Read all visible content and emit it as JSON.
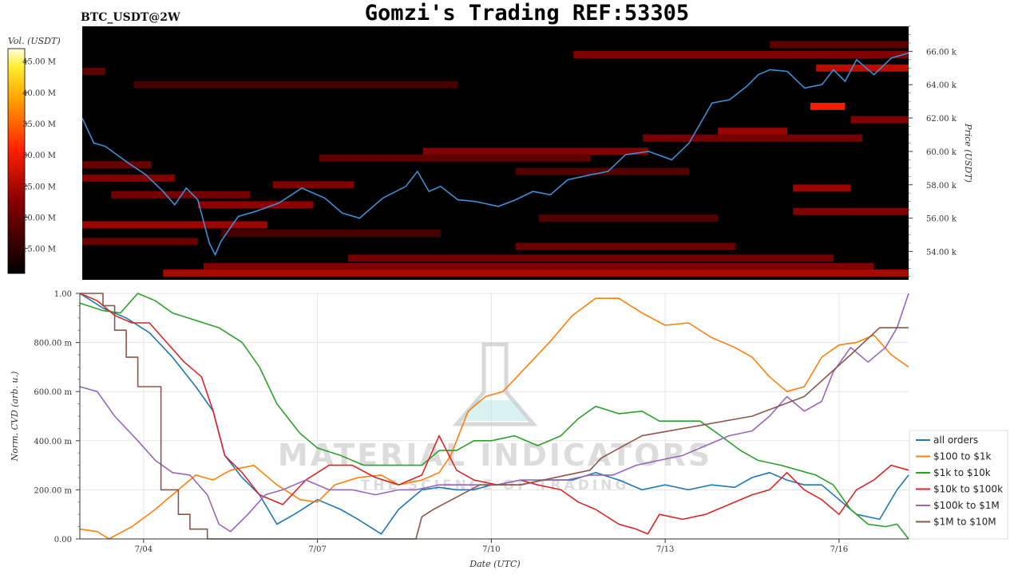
{
  "header": {
    "pair_label": "BTC_USDT@2W",
    "title": "Gomzi's Trading REF:53305"
  },
  "watermark": {
    "brand": "MATERIAL INDICATORS",
    "tagline": "THE SCIENCE OF TRADING"
  },
  "colors": {
    "background": "#000000",
    "price_line": "#3d8fd6",
    "grid": "#e6e6e6"
  },
  "chart_data": [
    {
      "type": "heatmap",
      "colorbar": {
        "label": "Vol. (USDT)",
        "ticks": [
          "45.00 M",
          "40.00 M",
          "35.00 M",
          "30.00 M",
          "25.00 M",
          "20.00 M",
          "15.00 M"
        ],
        "tick_values": [
          45,
          40,
          35,
          30,
          25,
          20,
          15
        ],
        "range": [
          11,
          47
        ],
        "colormap": "hot"
      },
      "ylabel": "Price (USDT)",
      "yticks": [
        "54.00 k",
        "56.00 k",
        "58.00 k",
        "60.00 k",
        "62.00 k",
        "64.00 k",
        "66.00 k"
      ],
      "ytick_values": [
        54000,
        56000,
        58000,
        60000,
        62000,
        64000,
        66000
      ],
      "ylim": [
        52300,
        67500
      ],
      "xlim": [
        0,
        14.3
      ],
      "bands": [
        {
          "price": 66400,
          "x0": 11.9,
          "x1": 14.3,
          "v": 19
        },
        {
          "price": 65800,
          "x0": 8.5,
          "x1": 14.3,
          "v": 22
        },
        {
          "price": 65000,
          "x0": 12.7,
          "x1": 14.3,
          "v": 26
        },
        {
          "price": 64800,
          "x0": 0,
          "x1": 0.4,
          "v": 19
        },
        {
          "price": 64000,
          "x0": 0.9,
          "x1": 6.5,
          "v": 17
        },
        {
          "price": 62700,
          "x0": 12.6,
          "x1": 13.2,
          "v": 30
        },
        {
          "price": 61900,
          "x0": 13.3,
          "x1": 14.3,
          "v": 22
        },
        {
          "price": 61200,
          "x0": 11.0,
          "x1": 12.2,
          "v": 24
        },
        {
          "price": 60800,
          "x0": 9.7,
          "x1": 13.5,
          "v": 21
        },
        {
          "price": 60000,
          "x0": 5.9,
          "x1": 9.8,
          "v": 22
        },
        {
          "price": 59600,
          "x0": 4.1,
          "x1": 8.8,
          "v": 19
        },
        {
          "price": 59200,
          "x0": 0,
          "x1": 1.2,
          "v": 20
        },
        {
          "price": 58800,
          "x0": 7.5,
          "x1": 10.5,
          "v": 18
        },
        {
          "price": 58400,
          "x0": 0,
          "x1": 1.6,
          "v": 22
        },
        {
          "price": 58000,
          "x0": 3.3,
          "x1": 4.7,
          "v": 22
        },
        {
          "price": 57800,
          "x0": 12.3,
          "x1": 13.3,
          "v": 24
        },
        {
          "price": 57400,
          "x0": 0.5,
          "x1": 2.9,
          "v": 21
        },
        {
          "price": 56800,
          "x0": 2.0,
          "x1": 4.0,
          "v": 23
        },
        {
          "price": 56400,
          "x0": 12.3,
          "x1": 14.3,
          "v": 22
        },
        {
          "price": 56000,
          "x0": 7.9,
          "x1": 11.0,
          "v": 18
        },
        {
          "price": 55600,
          "x0": 0,
          "x1": 3.2,
          "v": 24
        },
        {
          "price": 55100,
          "x0": 2.4,
          "x1": 6.2,
          "v": 17
        },
        {
          "price": 54600,
          "x0": 0,
          "x1": 2.0,
          "v": 20
        },
        {
          "price": 54300,
          "x0": 7.5,
          "x1": 11.3,
          "v": 20
        },
        {
          "price": 53600,
          "x0": 4.6,
          "x1": 13.0,
          "v": 21
        },
        {
          "price": 53100,
          "x0": 2.1,
          "x1": 13.7,
          "v": 22
        },
        {
          "price": 52700,
          "x0": 1.4,
          "x1": 14.3,
          "v": 25
        }
      ],
      "price_line": {
        "x": [
          0,
          0.2,
          0.4,
          0.8,
          1.1,
          1.4,
          1.6,
          1.8,
          2.0,
          2.2,
          2.3,
          2.4,
          2.7,
          3.0,
          3.4,
          3.8,
          4.2,
          4.5,
          4.8,
          5.2,
          5.6,
          5.8,
          6.0,
          6.2,
          6.5,
          6.8,
          7.2,
          7.5,
          7.8,
          8.1,
          8.4,
          8.8,
          9.1,
          9.4,
          9.8,
          10.2,
          10.5,
          10.9,
          11.2,
          11.5,
          11.7,
          11.9,
          12.2,
          12.5,
          12.8,
          13.0,
          13.2,
          13.4,
          13.7,
          14.0,
          14.3
        ],
        "y": [
          62000,
          60500,
          60300,
          59300,
          58600,
          57600,
          56800,
          57800,
          57100,
          54500,
          53800,
          54600,
          56100,
          56400,
          56900,
          57800,
          57200,
          56300,
          56000,
          57200,
          57900,
          58800,
          57600,
          57900,
          57100,
          57000,
          56700,
          57100,
          57600,
          57400,
          58300,
          58600,
          58800,
          59800,
          60000,
          59500,
          60500,
          62900,
          63100,
          63900,
          64600,
          64900,
          64800,
          63800,
          64000,
          64900,
          64200,
          65500,
          64600,
          65600,
          65900
        ]
      }
    },
    {
      "type": "line",
      "xlabel": "Date (UTC)",
      "ylabel": "Norm. CVD (arb. u.)",
      "xlim": [
        0,
        14.3
      ],
      "xtick_labels": [
        "7/04",
        "7/07",
        "7/10",
        "7/13",
        "7/16"
      ],
      "xtick_values": [
        1.1,
        4.1,
        7.1,
        10.1,
        13.1
      ],
      "ylim": [
        0,
        1
      ],
      "yticks": [
        "0.00",
        "200.00 m",
        "400.00 m",
        "600.00 m",
        "800.00 m",
        "1.00"
      ],
      "ytick_values": [
        0,
        0.2,
        0.4,
        0.6,
        0.8,
        1.0
      ],
      "legend_position": "bottom-right",
      "series": [
        {
          "name": "all orders",
          "color": "#1f77b4",
          "x": [
            0,
            0.4,
            0.8,
            1.2,
            1.6,
            2.0,
            2.3,
            2.5,
            2.8,
            3.1,
            3.4,
            3.7,
            4.1,
            4.5,
            4.8,
            5.2,
            5.5,
            5.9,
            6.2,
            6.5,
            6.8,
            7.1,
            7.6,
            8.0,
            8.5,
            8.9,
            9.3,
            9.7,
            10.1,
            10.5,
            10.9,
            11.3,
            11.6,
            11.9,
            12.2,
            12.5,
            12.8,
            13.1,
            13.4,
            13.8,
            14.1,
            14.3
          ],
          "y": [
            1.0,
            0.94,
            0.9,
            0.84,
            0.74,
            0.62,
            0.52,
            0.34,
            0.25,
            0.18,
            0.06,
            0.1,
            0.16,
            0.12,
            0.08,
            0.02,
            0.12,
            0.2,
            0.21,
            0.2,
            0.2,
            0.22,
            0.22,
            0.24,
            0.24,
            0.27,
            0.24,
            0.2,
            0.22,
            0.2,
            0.22,
            0.21,
            0.25,
            0.27,
            0.24,
            0.22,
            0.22,
            0.16,
            0.1,
            0.08,
            0.2,
            0.26
          ]
        },
        {
          "name": "$100 to $1k",
          "color": "#ff7f0e",
          "x": [
            0,
            0.3,
            0.5,
            0.9,
            1.3,
            1.7,
            2.0,
            2.3,
            2.6,
            3.0,
            3.4,
            3.8,
            4.1,
            4.4,
            4.8,
            5.2,
            5.5,
            5.9,
            6.2,
            6.4,
            6.7,
            7.0,
            7.3,
            7.7,
            8.1,
            8.5,
            8.9,
            9.3,
            9.7,
            10.1,
            10.5,
            10.9,
            11.3,
            11.6,
            11.9,
            12.2,
            12.5,
            12.8,
            13.1,
            13.4,
            13.7,
            14.0,
            14.3
          ],
          "y": [
            0.04,
            0.03,
            0.0,
            0.05,
            0.12,
            0.2,
            0.26,
            0.24,
            0.28,
            0.3,
            0.22,
            0.16,
            0.15,
            0.22,
            0.25,
            0.26,
            0.22,
            0.24,
            0.27,
            0.34,
            0.52,
            0.58,
            0.6,
            0.7,
            0.8,
            0.91,
            0.98,
            0.98,
            0.92,
            0.87,
            0.88,
            0.82,
            0.78,
            0.74,
            0.66,
            0.6,
            0.62,
            0.74,
            0.79,
            0.8,
            0.83,
            0.75,
            0.7
          ]
        },
        {
          "name": "$1k to $10k",
          "color": "#2ca02c",
          "x": [
            0,
            0.4,
            0.7,
            1.0,
            1.3,
            1.6,
            2.0,
            2.4,
            2.8,
            3.1,
            3.4,
            3.8,
            4.1,
            4.5,
            4.9,
            5.2,
            5.6,
            5.9,
            6.2,
            6.5,
            6.8,
            7.1,
            7.5,
            7.9,
            8.3,
            8.6,
            8.9,
            9.3,
            9.7,
            10.0,
            10.4,
            10.7,
            11.0,
            11.4,
            11.7,
            12.1,
            12.4,
            12.7,
            13.0,
            13.3,
            13.6,
            13.9,
            14.1,
            14.3
          ],
          "y": [
            0.96,
            0.93,
            0.92,
            1.0,
            0.97,
            0.92,
            0.89,
            0.86,
            0.8,
            0.7,
            0.55,
            0.43,
            0.37,
            0.34,
            0.3,
            0.3,
            0.3,
            0.3,
            0.36,
            0.36,
            0.4,
            0.4,
            0.42,
            0.38,
            0.42,
            0.49,
            0.54,
            0.51,
            0.52,
            0.48,
            0.48,
            0.48,
            0.43,
            0.36,
            0.32,
            0.3,
            0.28,
            0.26,
            0.22,
            0.12,
            0.06,
            0.05,
            0.06,
            0.0
          ]
        },
        {
          "name": "$10k to $100k",
          "color": "#d62728",
          "x": [
            0,
            0.3,
            0.6,
            0.9,
            1.2,
            1.5,
            1.8,
            2.1,
            2.3,
            2.5,
            2.8,
            3.1,
            3.5,
            3.9,
            4.3,
            4.7,
            5.1,
            5.5,
            5.9,
            6.2,
            6.5,
            6.8,
            7.2,
            7.6,
            7.9,
            8.3,
            8.6,
            8.9,
            9.3,
            9.6,
            9.8,
            10.0,
            10.4,
            10.8,
            11.2,
            11.6,
            11.9,
            12.2,
            12.5,
            12.8,
            13.1,
            13.4,
            13.7,
            14.0,
            14.3
          ],
          "y": [
            1.0,
            0.97,
            0.91,
            0.88,
            0.88,
            0.8,
            0.72,
            0.66,
            0.52,
            0.34,
            0.27,
            0.18,
            0.14,
            0.24,
            0.3,
            0.3,
            0.25,
            0.22,
            0.26,
            0.42,
            0.28,
            0.24,
            0.22,
            0.24,
            0.22,
            0.2,
            0.15,
            0.12,
            0.06,
            0.04,
            0.02,
            0.1,
            0.08,
            0.1,
            0.14,
            0.18,
            0.2,
            0.27,
            0.2,
            0.16,
            0.1,
            0.2,
            0.24,
            0.3,
            0.28
          ]
        },
        {
          "name": "$100k to $1M",
          "color": "#9467bd",
          "x": [
            0,
            0.3,
            0.6,
            1.0,
            1.3,
            1.6,
            1.9,
            2.2,
            2.4,
            2.6,
            2.9,
            3.2,
            3.5,
            3.9,
            4.3,
            4.7,
            5.1,
            5.5,
            5.8,
            6.2,
            6.5,
            6.8,
            7.2,
            7.6,
            8.0,
            8.4,
            8.8,
            9.2,
            9.6,
            10.0,
            10.4,
            10.8,
            11.2,
            11.6,
            11.9,
            12.2,
            12.5,
            12.8,
            13.0,
            13.3,
            13.6,
            13.9,
            14.1,
            14.3
          ],
          "y": [
            0.62,
            0.6,
            0.5,
            0.4,
            0.32,
            0.27,
            0.26,
            0.18,
            0.06,
            0.03,
            0.1,
            0.18,
            0.2,
            0.24,
            0.2,
            0.2,
            0.18,
            0.2,
            0.2,
            0.22,
            0.22,
            0.22,
            0.22,
            0.24,
            0.24,
            0.24,
            0.26,
            0.26,
            0.3,
            0.32,
            0.34,
            0.38,
            0.42,
            0.44,
            0.5,
            0.58,
            0.52,
            0.56,
            0.68,
            0.78,
            0.72,
            0.78,
            0.86,
            1.0
          ]
        },
        {
          "name": "$1M to $10M",
          "color": "#8c564b",
          "x": [
            0,
            0.4,
            0.4,
            0.6,
            0.6,
            0.8,
            0.8,
            1.0,
            1.0,
            1.4,
            1.4,
            1.7,
            1.7,
            1.9,
            1.9,
            2.2,
            2.2,
            2.6,
            2.6,
            4.6,
            5.8,
            5.8,
            5.9,
            5.9,
            6.1,
            6.1,
            6.9,
            6.9,
            7.6,
            7.6,
            8.8,
            8.8,
            9.0,
            9.0,
            9.7,
            9.7,
            11.6,
            11.6,
            12.5,
            12.5,
            13.3,
            13.3,
            13.8,
            13.8,
            14.3
          ],
          "y": [
            1.0,
            1.0,
            0.95,
            0.95,
            0.85,
            0.85,
            0.74,
            0.74,
            0.62,
            0.62,
            0.2,
            0.2,
            0.1,
            0.1,
            0.04,
            0.04,
            0.0,
            0.0,
            0.0,
            0.0,
            0.0,
            0.0,
            0.09,
            0.09,
            0.12,
            0.12,
            0.22,
            0.22,
            0.22,
            0.22,
            0.28,
            0.28,
            0.33,
            0.33,
            0.42,
            0.42,
            0.5,
            0.5,
            0.58,
            0.58,
            0.75,
            0.75,
            0.86,
            0.86,
            0.86
          ]
        }
      ]
    }
  ]
}
